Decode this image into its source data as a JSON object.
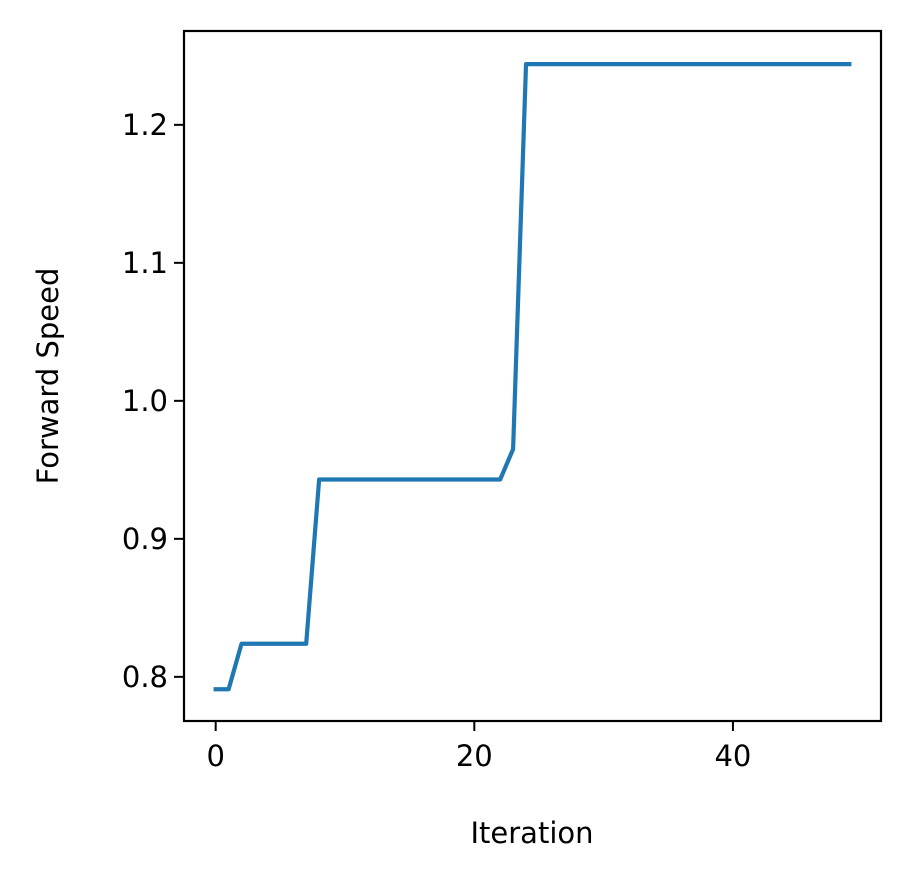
{
  "chart_data": {
    "type": "line",
    "title": "",
    "xlabel": "Iteration",
    "ylabel": "Forward Speed",
    "xlim": [
      -2.45,
      51.45
    ],
    "ylim": [
      0.768,
      1.268
    ],
    "xticks": [
      0,
      20,
      40
    ],
    "xtick_labels": [
      "0",
      "20",
      "40"
    ],
    "yticks": [
      0.8,
      0.9,
      1.0,
      1.1,
      1.2
    ],
    "ytick_labels": [
      "0.8",
      "0.9",
      "1.0",
      "1.1",
      "1.2"
    ],
    "grid": false,
    "legend": "none",
    "series": [
      {
        "color": "#1f77b4",
        "x": [
          0,
          1,
          2,
          3,
          4,
          5,
          6,
          7,
          8,
          9,
          10,
          11,
          12,
          13,
          14,
          15,
          16,
          17,
          18,
          19,
          20,
          21,
          22,
          23,
          24,
          25,
          26,
          27,
          28,
          29,
          30,
          31,
          32,
          33,
          34,
          35,
          36,
          37,
          38,
          39,
          40,
          41,
          42,
          43,
          44,
          45,
          46,
          47,
          48,
          49
        ],
        "y": [
          0.791,
          0.791,
          0.824,
          0.824,
          0.824,
          0.824,
          0.824,
          0.824,
          0.943,
          0.943,
          0.943,
          0.943,
          0.943,
          0.943,
          0.943,
          0.943,
          0.943,
          0.943,
          0.943,
          0.943,
          0.943,
          0.943,
          0.943,
          0.965,
          1.244,
          1.244,
          1.244,
          1.244,
          1.244,
          1.244,
          1.244,
          1.244,
          1.244,
          1.244,
          1.244,
          1.244,
          1.244,
          1.244,
          1.244,
          1.244,
          1.244,
          1.244,
          1.244,
          1.244,
          1.244,
          1.244,
          1.244,
          1.244,
          1.244,
          1.244
        ]
      }
    ]
  }
}
